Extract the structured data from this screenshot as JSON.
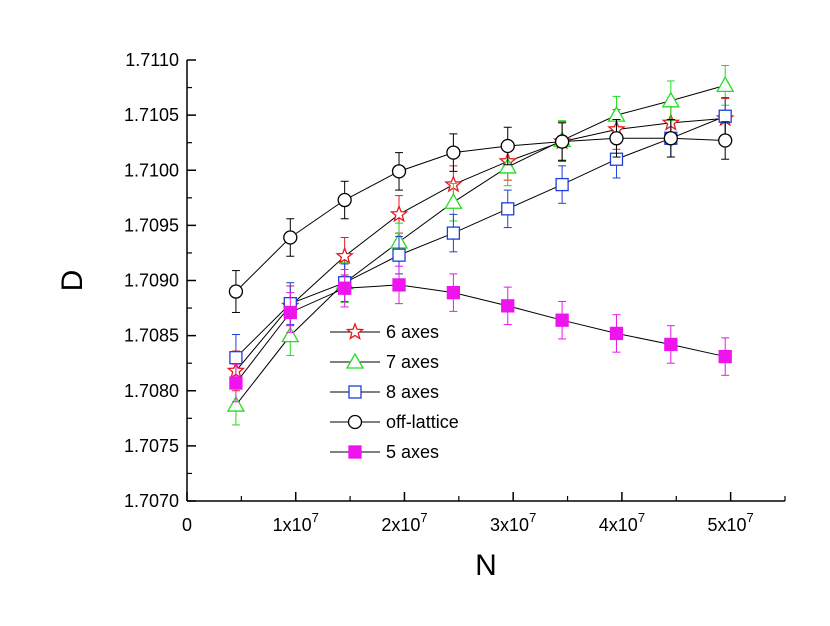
{
  "chart_data": {
    "type": "scatter",
    "xlabel": "N",
    "ylabel": "D",
    "xlim": [
      0,
      55000000
    ],
    "ylim": [
      1.707,
      1.711
    ],
    "grid": false,
    "legend_placement": "center",
    "x_ticks": [
      0,
      10000000,
      20000000,
      30000000,
      40000000,
      50000000
    ],
    "x_tick_labels": [
      {
        "base": "0",
        "exp": ""
      },
      {
        "base": "1x10",
        "exp": "7"
      },
      {
        "base": "2x10",
        "exp": "7"
      },
      {
        "base": "3x10",
        "exp": "7"
      },
      {
        "base": "4x10",
        "exp": "7"
      },
      {
        "base": "5x10",
        "exp": "7"
      }
    ],
    "y_ticks": [
      1.707,
      1.7075,
      1.708,
      1.7085,
      1.709,
      1.7095,
      1.71,
      1.7105,
      1.711
    ],
    "y_tick_labels": [
      "1.7070",
      "1.7075",
      "1.7080",
      "1.7085",
      "1.7090",
      "1.7095",
      "1.7100",
      "1.7105",
      "1.7110"
    ],
    "x": [
      4500000,
      9500000,
      14500000,
      19500000,
      24500000,
      29500000,
      34500000,
      39500000,
      44500000,
      49500000
    ],
    "series": [
      {
        "name": "6 axes",
        "marker": "star",
        "color": "#e8191e",
        "filled": false,
        "y": [
          1.70818,
          1.70877,
          1.70922,
          1.7096,
          1.70987,
          1.71008,
          1.71026,
          1.71037,
          1.71043,
          1.71047
        ],
        "err": [
          0.00018,
          0.00018,
          0.00017,
          0.00017,
          0.00017,
          0.00017,
          0.00018,
          0.00018,
          0.00018,
          0.00018
        ]
      },
      {
        "name": "7 axes",
        "marker": "triangle",
        "color": "#22dd22",
        "filled": false,
        "y": [
          1.70787,
          1.7085,
          1.70898,
          1.70935,
          1.70971,
          1.71003,
          1.71027,
          1.7105,
          1.71063,
          1.71077
        ],
        "err": [
          0.00018,
          0.00018,
          0.00018,
          0.00017,
          0.00017,
          0.00017,
          0.00018,
          0.00017,
          0.00018,
          0.00018
        ]
      },
      {
        "name": "8 axes",
        "marker": "square",
        "color": "#1f3fd8",
        "filled": false,
        "y": [
          1.7083,
          1.70879,
          1.70898,
          1.70923,
          1.70943,
          1.70965,
          1.70987,
          1.7101,
          1.71029,
          1.71049
        ],
        "err": [
          0.00021,
          0.00019,
          0.00017,
          0.00017,
          0.00017,
          0.00017,
          0.00017,
          0.00017,
          0.00017,
          0.00017
        ]
      },
      {
        "name": "off-lattice",
        "marker": "circle",
        "color": "#000000",
        "filled": false,
        "y": [
          1.7089,
          1.70939,
          1.70973,
          1.70999,
          1.71016,
          1.71022,
          1.71026,
          1.71029,
          1.71029,
          1.71027
        ],
        "err": [
          0.00019,
          0.00017,
          0.00017,
          0.00017,
          0.00017,
          0.00017,
          0.00017,
          0.00017,
          0.00017,
          0.00017
        ]
      },
      {
        "name": "5 axes",
        "marker": "square",
        "color": "#ee14ee",
        "filled": true,
        "y": [
          1.70807,
          1.70871,
          1.70893,
          1.70896,
          1.70889,
          1.70877,
          1.70864,
          1.70852,
          1.70842,
          1.70831
        ],
        "err": [
          0.00017,
          0.00018,
          0.00017,
          0.00017,
          0.00017,
          0.00017,
          0.00017,
          0.00017,
          0.00017,
          0.00017
        ]
      }
    ],
    "legend": {
      "order": [
        "6 axes",
        "7 axes",
        "8 axes",
        "off-lattice",
        "5 axes"
      ]
    }
  }
}
